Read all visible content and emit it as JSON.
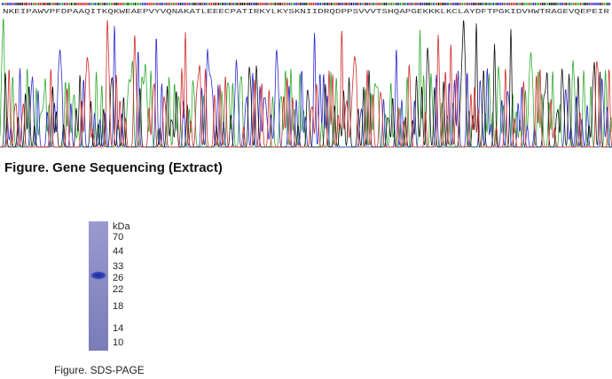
{
  "sequencing": {
    "protein_sequence": "NKEIPAWVPFDPAAQITKQKWEAEPVYVQNAKATLEEECPATIRKYLKYSKNIIDRQDPPSVVVTSHQAPGEKKKLKCLAYDFTPGKIDVHWTRAGEVQEPEIR",
    "caption": "Figure. Gene Sequencing (Extract)"
  },
  "gel": {
    "unit": "kDa",
    "markers": [
      70,
      44,
      33,
      26,
      22,
      18,
      14,
      10
    ],
    "caption": "Figure. SDS-PAGE"
  }
}
